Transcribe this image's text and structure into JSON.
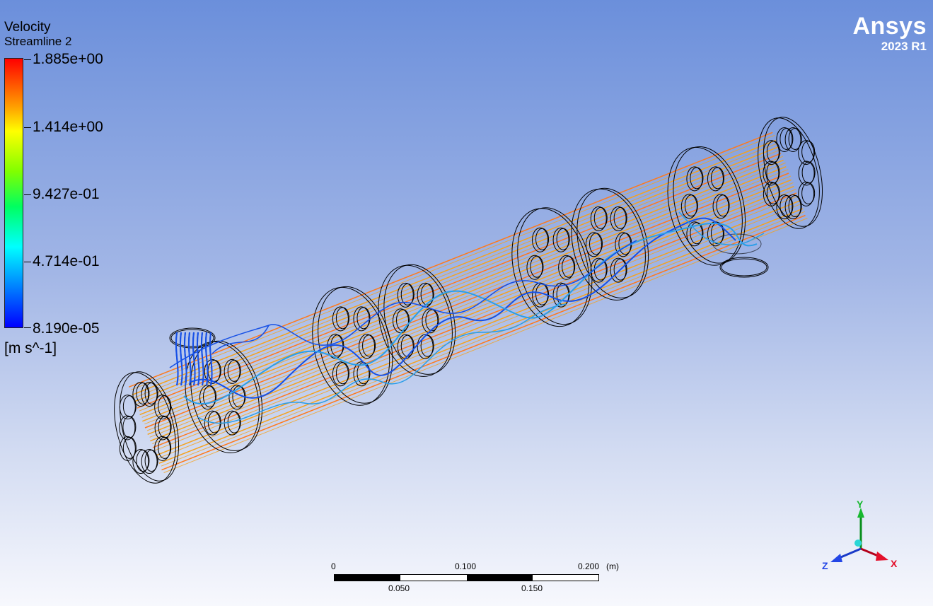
{
  "legend": {
    "title": "Velocity",
    "subtitle": "Streamline 2",
    "ticks": [
      "1.885e+00",
      "1.414e+00",
      "9.427e-01",
      "4.714e-01",
      "8.190e-05"
    ],
    "unit": "[m s^-1]"
  },
  "brand": {
    "name": "Ansys",
    "version": "2023 R1"
  },
  "scale_bar": {
    "top_labels": [
      "0",
      "0.100",
      "0.200"
    ],
    "unit": "(m)",
    "bottom_labels": [
      "0.050",
      "0.150"
    ]
  },
  "axes": {
    "y": "Y",
    "z": "Z",
    "x": "X"
  },
  "colors": {
    "fast_stream": "#f5a21e",
    "fast_stream_alt": "#ff7a1a",
    "slow_stream": "#1650e6",
    "slow_stream_alt": "#2a9ee8"
  }
}
